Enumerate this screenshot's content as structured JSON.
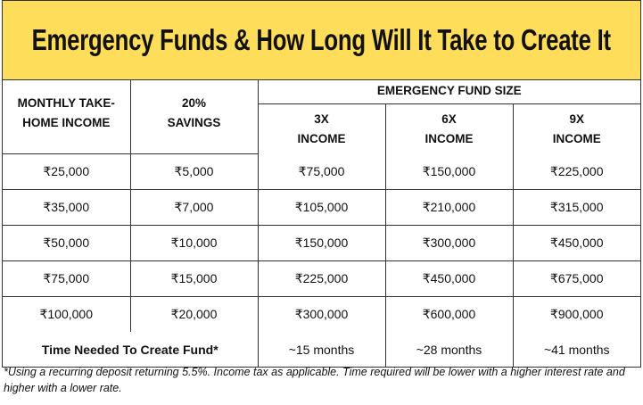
{
  "title": "Emergency Funds & How Long Will It Take to Create It",
  "colors": {
    "title_background": "#FEDD5B",
    "border": "#333333"
  },
  "headers": {
    "income_line1": "MONTHLY TAKE-",
    "income_line2": "HOME INCOME",
    "savings_line1": "20%",
    "savings_line2": "SAVINGS",
    "fund_size": "EMERGENCY FUND SIZE",
    "sub": [
      {
        "line1": "3X",
        "line2": "INCOME"
      },
      {
        "line1": "6X",
        "line2": "INCOME"
      },
      {
        "line1": "9X",
        "line2": "INCOME"
      }
    ]
  },
  "rows": [
    [
      "₹25,000",
      "₹5,000",
      "₹75,000",
      "₹150,000",
      "₹225,000"
    ],
    [
      "₹35,000",
      "₹7,000",
      "₹105,000",
      "₹210,000",
      "₹315,000"
    ],
    [
      "₹50,000",
      "₹10,000",
      "₹150,000",
      "₹300,000",
      "₹450,000"
    ],
    [
      "₹75,000",
      "₹15,000",
      "₹225,000",
      "₹450,000",
      "₹675,000"
    ],
    [
      "₹100,000",
      "₹20,000",
      "₹300,000",
      "₹600,000",
      "₹900,000"
    ]
  ],
  "time_row": {
    "label": "Time Needed To Create Fund*",
    "values": [
      "~15 months",
      "~28 months",
      "~41 months"
    ]
  },
  "footnote": "*Using a recurring deposit returning 5.5%. Income tax as applicable. Time required will be lower with a higher interest rate and higher with a lower rate."
}
